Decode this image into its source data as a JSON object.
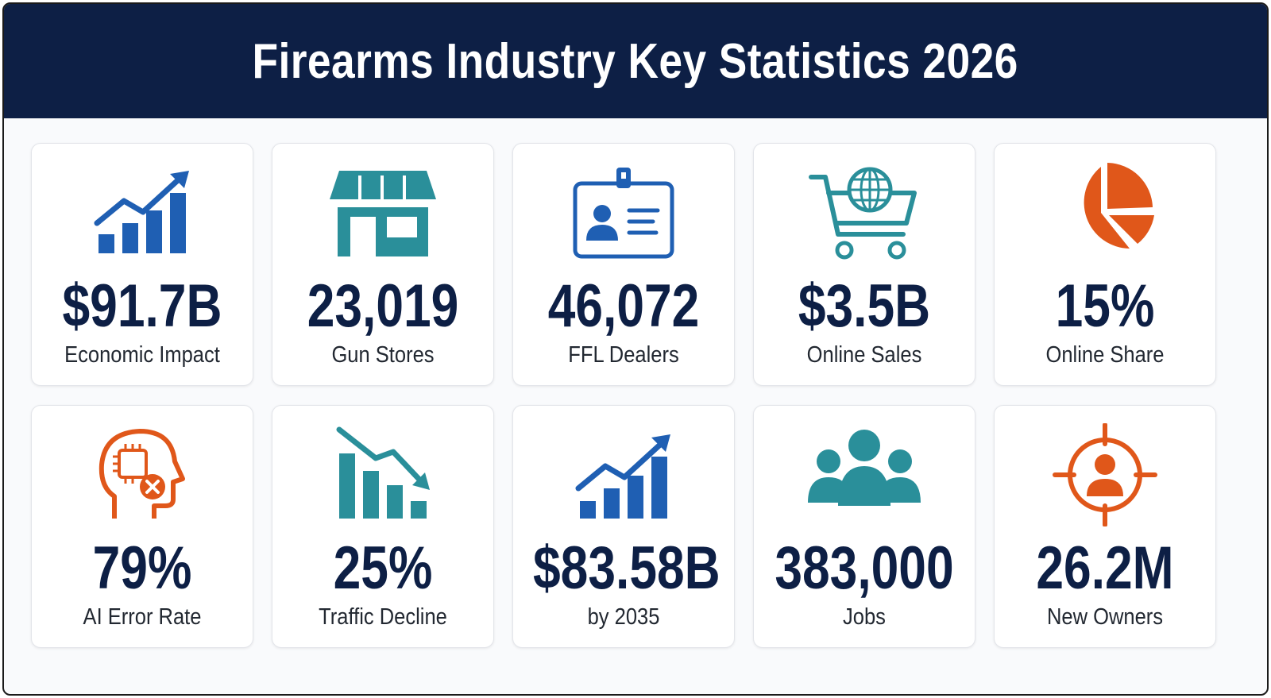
{
  "title": "Firearms Industry Key Statistics 2026",
  "colors": {
    "header_bg": "#0d1f45",
    "value_text": "#0d1f45",
    "blue": "#1f5fb3",
    "teal": "#2a8f9a",
    "orange": "#e0571a"
  },
  "stats": [
    {
      "icon": "growth-chart-icon",
      "value": "$91.7B",
      "label": "Economic Impact"
    },
    {
      "icon": "storefront-icon",
      "value": "23,019",
      "label": "Gun Stores"
    },
    {
      "icon": "id-badge-icon",
      "value": "46,072",
      "label": "FFL Dealers"
    },
    {
      "icon": "globe-cart-icon",
      "value": "$3.5B",
      "label": "Online Sales"
    },
    {
      "icon": "pie-chart-icon",
      "value": "15%",
      "label": "Online Share"
    },
    {
      "icon": "ai-head-error-icon",
      "value": "79%",
      "label": "AI Error Rate"
    },
    {
      "icon": "decline-chart-icon",
      "value": "25%",
      "label": "Traffic Decline"
    },
    {
      "icon": "growth-chart-icon",
      "value": "$83.58B",
      "label": "by 2035"
    },
    {
      "icon": "people-group-icon",
      "value": "383,000",
      "label": "Jobs"
    },
    {
      "icon": "target-person-icon",
      "value": "26.2M",
      "label": "New Owners"
    }
  ]
}
